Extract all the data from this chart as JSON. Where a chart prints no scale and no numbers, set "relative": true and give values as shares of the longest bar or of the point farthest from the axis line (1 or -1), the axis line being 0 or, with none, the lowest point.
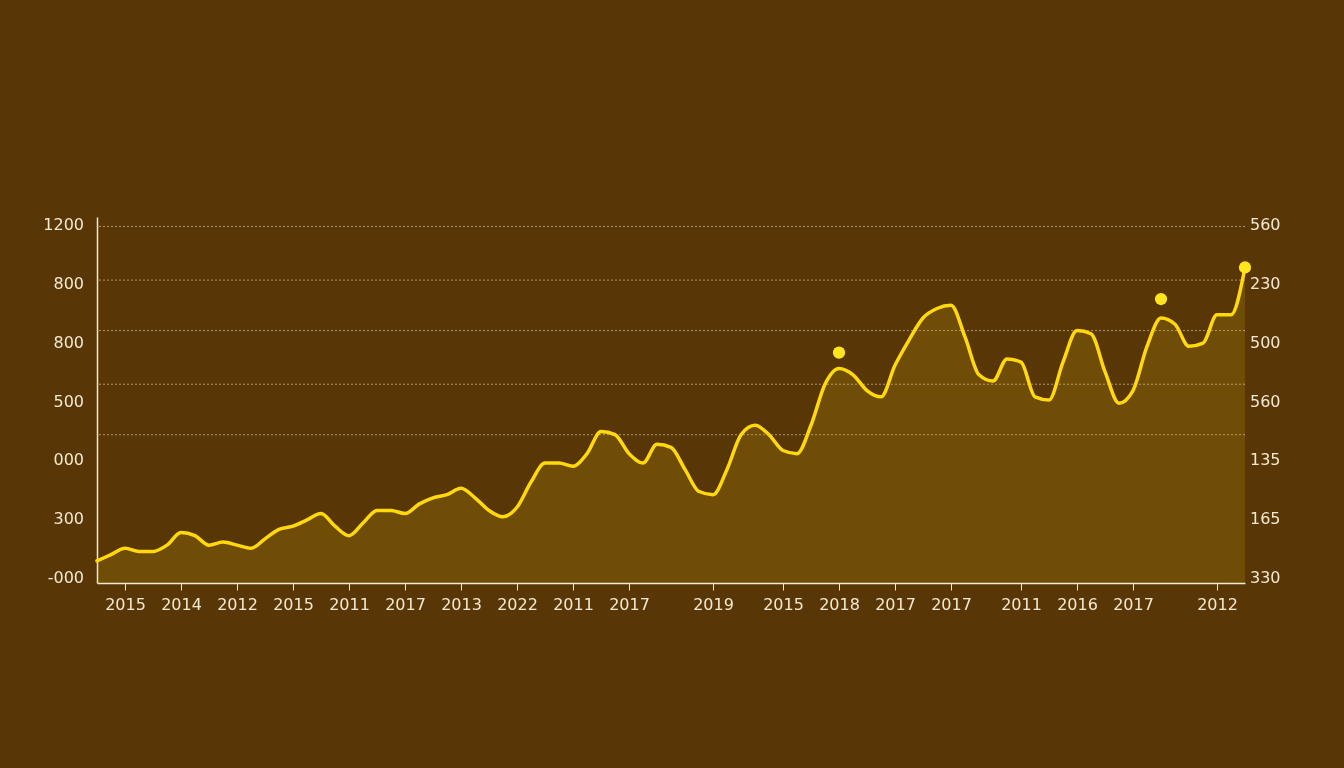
{
  "chart_data": {
    "type": "area",
    "relative": true,
    "line_style": "solid",
    "categories": [
      null,
      null,
      "2015",
      null,
      null,
      null,
      "2014",
      null,
      null,
      null,
      "2012",
      null,
      null,
      null,
      "2015",
      null,
      null,
      null,
      "2011",
      null,
      null,
      null,
      "2017",
      null,
      null,
      null,
      "2013",
      null,
      null,
      null,
      "2022",
      null,
      null,
      null,
      "2011",
      null,
      null,
      null,
      "2017",
      null,
      null,
      null,
      null,
      null,
      "2019",
      null,
      null,
      null,
      null,
      "2015",
      null,
      null,
      null,
      "2018",
      null,
      null,
      null,
      "2017",
      null,
      null,
      null,
      "2017",
      null,
      null,
      null,
      null,
      "2011",
      null,
      null,
      null,
      "2016",
      null,
      null,
      null,
      "2017",
      null,
      null,
      null,
      null,
      null,
      "2012",
      null,
      null
    ],
    "annotations": [
      "1200",
      "800",
      "800",
      "500",
      "000",
      "300",
      "-000",
      "560",
      "230",
      "500",
      "560",
      "135",
      "165",
      "330"
    ],
    "ref_lines": [
      {
        "axis": "y",
        "value": 1.13,
        "line_style": "dotted",
        "color": "#cdb58e"
      },
      {
        "axis": "y",
        "value": 0.96,
        "line_style": "dotted",
        "color": "#cdb58e"
      },
      {
        "axis": "y",
        "value": 0.8,
        "line_style": "dotted",
        "color": "#cdb58e"
      },
      {
        "axis": "y",
        "value": 0.63,
        "line_style": "dotted",
        "color": "#cdb58e"
      },
      {
        "axis": "y",
        "value": 0.47,
        "line_style": "dotted",
        "color": "#cdb58e"
      }
    ],
    "series": [
      {
        "color": "#ffd90c",
        "values": [
          0.07,
          0.09,
          0.11,
          0.1,
          0.1,
          0.12,
          0.16,
          0.15,
          0.12,
          0.13,
          0.12,
          0.11,
          0.14,
          0.17,
          0.18,
          0.2,
          0.22,
          0.18,
          0.15,
          0.19,
          0.23,
          0.23,
          0.22,
          0.25,
          0.27,
          0.28,
          0.3,
          0.27,
          0.23,
          0.21,
          0.24,
          0.32,
          0.38,
          0.38,
          0.37,
          0.41,
          0.48,
          0.47,
          0.41,
          0.38,
          0.44,
          0.43,
          0.36,
          0.29,
          0.28,
          0.36,
          0.47,
          0.5,
          0.47,
          0.42,
          0.41,
          0.5,
          0.63,
          0.68,
          0.66,
          0.61,
          0.59,
          0.69,
          0.77,
          0.84,
          0.87,
          0.88,
          0.78,
          0.66,
          0.64,
          0.71,
          0.7,
          0.59,
          0.58,
          0.7,
          0.8,
          0.79,
          0.67,
          0.57,
          0.61,
          0.75,
          0.84,
          0.82,
          0.75,
          0.76,
          0.85,
          0.85,
          1.0
        ]
      },
      {
        "type": "scatter",
        "marker": "circle",
        "color": "#ffe51e",
        "values": [
          null,
          null,
          null,
          null,
          null,
          null,
          null,
          null,
          null,
          null,
          null,
          null,
          null,
          null,
          null,
          null,
          null,
          null,
          null,
          null,
          null,
          null,
          null,
          null,
          null,
          null,
          null,
          null,
          null,
          null,
          null,
          null,
          null,
          null,
          null,
          null,
          null,
          null,
          null,
          null,
          null,
          null,
          null,
          null,
          null,
          null,
          null,
          null,
          null,
          null,
          null,
          null,
          null,
          0.73,
          null,
          null,
          null,
          null,
          null,
          null,
          null,
          null,
          null,
          null,
          null,
          null,
          null,
          null,
          null,
          null,
          null,
          null,
          null,
          null,
          null,
          null,
          0.9,
          null,
          null,
          null,
          null,
          null,
          1.0
        ]
      }
    ]
  }
}
